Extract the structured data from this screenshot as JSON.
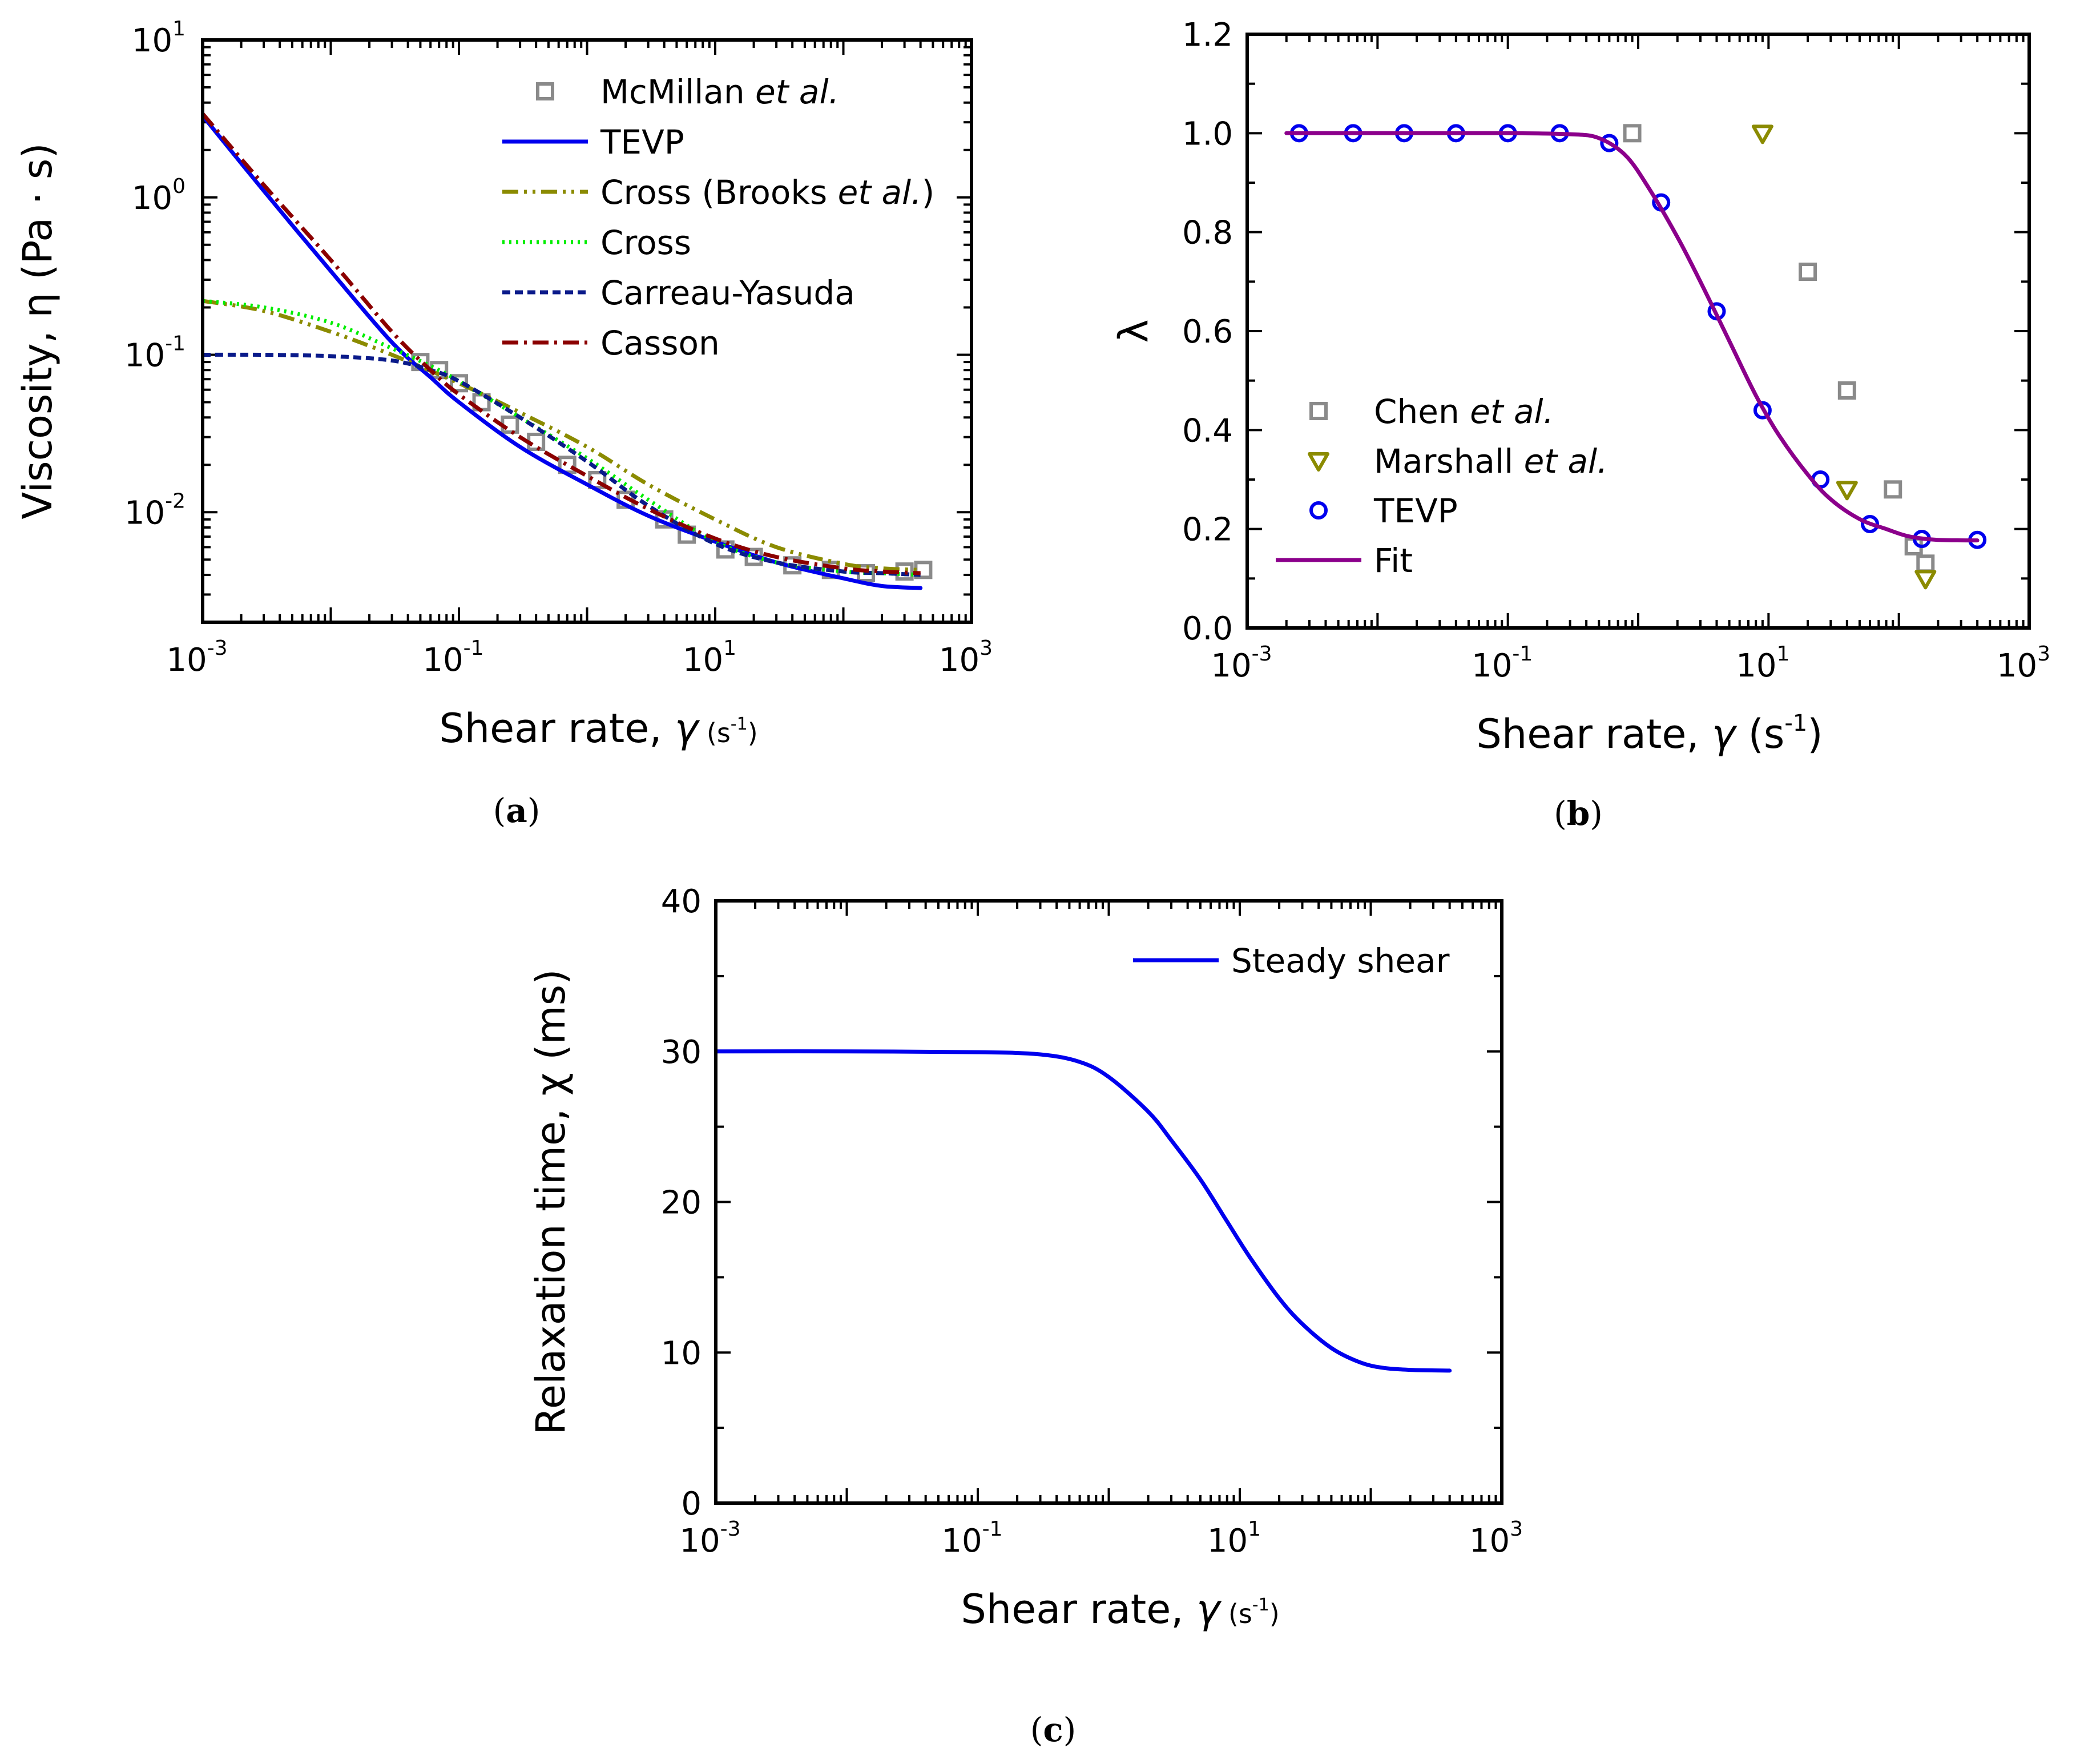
{
  "chart_data": [
    {
      "panel": "a",
      "type": "line",
      "caption": "a",
      "xlabel": "Shear rate,",
      "xlabel_unit": "s",
      "ylabel": "Viscosity, η (Pa · s)",
      "x_scale": "log",
      "y_scale": "log",
      "xlim": [
        0.001,
        1000
      ],
      "ylim": [
        0.002,
        10
      ],
      "x_ticks": [
        {
          "base": "10",
          "exp": "-3",
          "value": 0.001
        },
        {
          "base": "10",
          "exp": "-1",
          "value": 0.1
        },
        {
          "base": "10",
          "exp": "1",
          "value": 10
        },
        {
          "base": "10",
          "exp": "3",
          "value": 1000
        }
      ],
      "y_ticks": [
        {
          "base": "10",
          "exp": "1",
          "value": 10
        },
        {
          "base": "10",
          "exp": "0",
          "value": 1
        },
        {
          "base": "10",
          "exp": "-1",
          "value": 0.1
        },
        {
          "base": "10",
          "exp": "-2",
          "value": 0.01
        }
      ],
      "legend_position": "top-right",
      "series": [
        {
          "name": "McMillan",
          "name_italic": "et al.",
          "kind": "square-marker",
          "color": "#8a8a8a",
          "x": [
            0.05,
            0.07,
            0.1,
            0.15,
            0.25,
            0.4,
            0.7,
            1.2,
            2,
            4,
            6,
            12,
            20,
            40,
            80,
            150,
            300,
            420
          ],
          "y": [
            0.09,
            0.08,
            0.066,
            0.05,
            0.036,
            0.028,
            0.02,
            0.016,
            0.012,
            0.009,
            0.0072,
            0.0058,
            0.0052,
            0.0046,
            0.0043,
            0.0041,
            0.0042,
            0.0043
          ]
        },
        {
          "name": "TEVP",
          "kind": "line",
          "color": "#0000ee",
          "dash": "",
          "x": [
            0.001,
            0.003,
            0.01,
            0.03,
            0.06,
            0.1,
            0.3,
            1,
            3,
            10,
            30,
            100,
            200,
            400
          ],
          "y": [
            3.3,
            1.1,
            0.34,
            0.12,
            0.072,
            0.05,
            0.026,
            0.015,
            0.0095,
            0.0065,
            0.0048,
            0.0038,
            0.0034,
            0.0033
          ]
        },
        {
          "name": "Cross (Brooks",
          "name_italic": "et al.",
          "name_suffix": ")",
          "kind": "line",
          "color": "#8b8b00",
          "dash": "28,10,5,10,5,10",
          "x": [
            0.001,
            0.003,
            0.01,
            0.03,
            0.1,
            0.3,
            1,
            3,
            10,
            30,
            100,
            200,
            400
          ],
          "y": [
            0.22,
            0.19,
            0.14,
            0.1,
            0.066,
            0.043,
            0.026,
            0.015,
            0.009,
            0.006,
            0.0047,
            0.0044,
            0.0043
          ]
        },
        {
          "name": "Cross",
          "kind": "line",
          "color": "#00ee00",
          "dash": "4,8",
          "x": [
            0.001,
            0.003,
            0.01,
            0.03,
            0.06,
            0.1,
            0.3,
            1,
            3,
            10,
            30,
            100,
            200,
            400
          ],
          "y": [
            0.22,
            0.2,
            0.16,
            0.11,
            0.085,
            0.068,
            0.04,
            0.022,
            0.012,
            0.0065,
            0.0048,
            0.0042,
            0.0041,
            0.004
          ]
        },
        {
          "name": "Carreau-Yasuda",
          "kind": "line",
          "color": "#0a1a8a",
          "dash": "14,8",
          "x": [
            0.001,
            0.003,
            0.01,
            0.03,
            0.06,
            0.1,
            0.3,
            1,
            3,
            10,
            30,
            100,
            200,
            400
          ],
          "y": [
            0.1,
            0.1,
            0.098,
            0.092,
            0.08,
            0.068,
            0.04,
            0.021,
            0.011,
            0.0063,
            0.0048,
            0.0042,
            0.0041,
            0.004
          ]
        },
        {
          "name": "Casson",
          "kind": "line",
          "color": "#8b0000",
          "dash": "28,10,5,10",
          "x": [
            0.001,
            0.003,
            0.01,
            0.03,
            0.06,
            0.1,
            0.3,
            1,
            3,
            10,
            30,
            100,
            200,
            400
          ],
          "y": [
            3.4,
            1.2,
            0.4,
            0.14,
            0.08,
            0.056,
            0.03,
            0.017,
            0.0105,
            0.0068,
            0.0052,
            0.0044,
            0.0042,
            0.0041
          ]
        }
      ]
    },
    {
      "panel": "b",
      "type": "scatter",
      "caption": "b",
      "xlabel": "Shear rate,",
      "xlabel_unit": "s",
      "ylabel": "λ",
      "x_scale": "log",
      "y_scale": "linear",
      "xlim": [
        0.001,
        1000
      ],
      "ylim": [
        0,
        1.2
      ],
      "x_ticks": [
        {
          "base": "10",
          "exp": "-3",
          "value": 0.001
        },
        {
          "base": "10",
          "exp": "-1",
          "value": 0.1
        },
        {
          "base": "10",
          "exp": "1",
          "value": 10
        },
        {
          "base": "10",
          "exp": "3",
          "value": 1000
        }
      ],
      "y_ticks": [
        "0.0",
        "0.2",
        "0.4",
        "0.6",
        "0.8",
        "1.0",
        "1.2"
      ],
      "legend_position": "bottom-left",
      "series": [
        {
          "name": "Chen",
          "name_italic": "et al.",
          "kind": "square-marker",
          "color": "#8a8a8a",
          "x": [
            0.9,
            20,
            40,
            90,
            130,
            160
          ],
          "y": [
            1.0,
            0.72,
            0.48,
            0.28,
            0.165,
            0.13
          ]
        },
        {
          "name": "Marshall",
          "name_italic": "et al.",
          "kind": "triangle-marker",
          "color": "#8b8b00",
          "x": [
            9,
            40,
            160
          ],
          "y": [
            1.0,
            0.28,
            0.1
          ]
        },
        {
          "name": "TEVP",
          "kind": "circle-marker",
          "color": "#0000ee",
          "x": [
            0.0025,
            0.0065,
            0.016,
            0.04,
            0.1,
            0.25,
            0.6,
            1.5,
            4,
            9,
            25,
            60,
            150,
            400
          ],
          "y": [
            1.0,
            1.0,
            1.0,
            1.0,
            1.0,
            1.0,
            0.98,
            0.86,
            0.64,
            0.44,
            0.3,
            0.21,
            0.18,
            0.178
          ]
        },
        {
          "name": "Fit",
          "kind": "line",
          "color": "#8b008b",
          "dash": "",
          "x": [
            0.002,
            0.01,
            0.1,
            0.3,
            0.5,
            0.8,
            1.2,
            2,
            3,
            5,
            8,
            12,
            20,
            30,
            50,
            80,
            120,
            200,
            400
          ],
          "y": [
            1.0,
            1.0,
            1.0,
            0.998,
            0.99,
            0.955,
            0.89,
            0.79,
            0.7,
            0.58,
            0.47,
            0.39,
            0.31,
            0.26,
            0.22,
            0.2,
            0.185,
            0.178,
            0.177
          ]
        }
      ]
    },
    {
      "panel": "c",
      "type": "line",
      "caption": "c",
      "xlabel": "Shear rate,",
      "xlabel_unit": "s",
      "ylabel": "Relaxation time, χ (ms)",
      "x_scale": "log",
      "y_scale": "linear",
      "xlim": [
        0.001,
        1000
      ],
      "ylim": [
        0,
        40
      ],
      "x_ticks": [
        {
          "base": "10",
          "exp": "-3",
          "value": 0.001
        },
        {
          "base": "10",
          "exp": "-1",
          "value": 0.1
        },
        {
          "base": "10",
          "exp": "1",
          "value": 10
        },
        {
          "base": "10",
          "exp": "3",
          "value": 1000
        }
      ],
      "y_ticks": [
        "0",
        "10",
        "20",
        "30",
        "40"
      ],
      "legend_position": "top-right",
      "series": [
        {
          "name": "Steady shear",
          "kind": "line",
          "color": "#0000ee",
          "dash": "",
          "x": [
            0.001,
            0.01,
            0.1,
            0.3,
            0.6,
            1,
            2,
            3,
            5,
            8,
            12,
            20,
            30,
            50,
            80,
            120,
            200,
            400
          ],
          "y": [
            30,
            30,
            29.95,
            29.8,
            29.3,
            28.3,
            26,
            24.1,
            21.5,
            18.7,
            16.3,
            13.6,
            11.9,
            10.3,
            9.4,
            9.0,
            8.85,
            8.8
          ]
        }
      ]
    }
  ]
}
